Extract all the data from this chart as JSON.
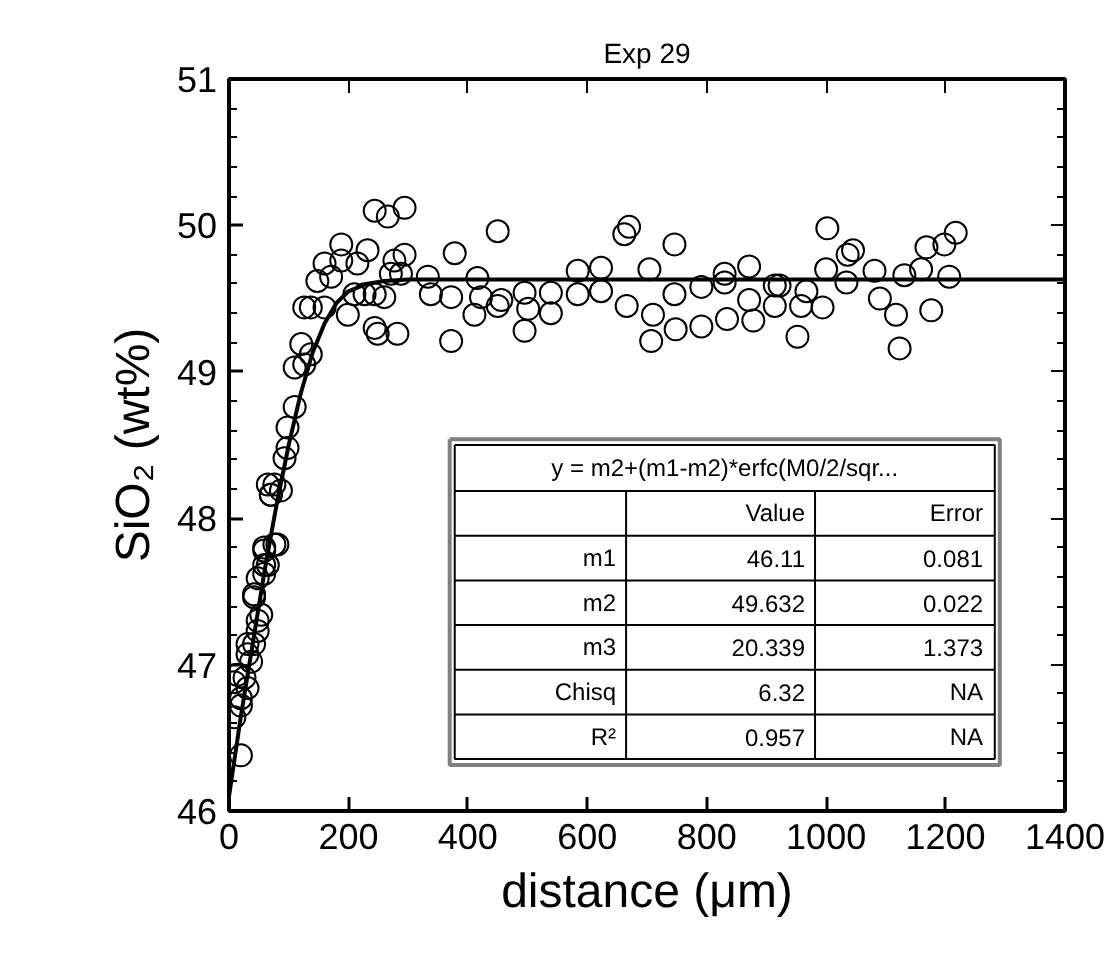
{
  "chart_data": {
    "type": "scatter",
    "title": "Exp 29",
    "xlabel": "distance (μm)",
    "ylabel": "SiO₂ (wt%)",
    "xlim": [
      0,
      1400
    ],
    "xticks": [
      0,
      200,
      400,
      600,
      800,
      1000,
      1200,
      1400
    ],
    "ylim": [
      46,
      51
    ],
    "yticks": [
      46,
      47,
      48,
      49,
      50,
      51
    ],
    "grid": false,
    "marker": "circle",
    "series": [
      {
        "color": "#000000",
        "x": [
          20,
          9,
          20,
          14,
          26,
          37,
          31,
          48,
          42,
          59,
          59,
          65,
          70,
          20,
          31,
          9,
          31,
          42,
          48,
          54,
          42,
          48,
          59,
          65,
          59,
          76,
          81,
          70,
          76,
          87,
          93,
          98,
          98,
          110,
          110,
          121,
          126,
          137,
          126,
          137,
          148,
          160,
          160,
          171,
          188,
          188,
          199,
          210,
          215,
          227,
          232,
          244,
          249,
          244,
          244,
          266,
          260,
          271,
          277,
          282,
          294,
          294,
          288,
          333,
          338,
          372,
          378,
          372,
          411,
          416,
          422,
          450,
          456,
          450,
          495,
          501,
          495,
          539,
          539,
          584,
          584,
          623,
          623,
          662,
          670,
          666,
          704,
          710,
          707,
          746,
          746,
          748,
          791,
          791,
          830,
          830,
          834,
          871,
          871,
          878,
          914,
          914,
          922,
          952,
          958,
          967,
          994,
          1000,
          1002,
          1036,
          1045,
          1034,
          1081,
          1090,
          1117,
          1123,
          1131,
          1159,
          1168,
          1176,
          1198,
          1206,
          1217
        ],
        "values": [
          46.38,
          46.64,
          46.77,
          46.93,
          46.91,
          47.02,
          47.14,
          47.3,
          47.48,
          47.68,
          47.8,
          48.23,
          48.16,
          46.72,
          46.84,
          46.88,
          47.07,
          47.14,
          47.23,
          47.34,
          47.46,
          47.59,
          47.62,
          47.68,
          47.78,
          47.82,
          47.82,
          48.16,
          48.23,
          48.19,
          48.41,
          48.48,
          48.62,
          48.76,
          49.03,
          49.19,
          49.05,
          49.12,
          49.44,
          49.44,
          49.62,
          49.44,
          49.74,
          49.65,
          49.87,
          49.76,
          49.39,
          49.53,
          49.74,
          49.53,
          49.83,
          49.3,
          49.26,
          49.53,
          50.1,
          50.06,
          49.51,
          49.67,
          49.76,
          49.26,
          50.12,
          49.8,
          49.67,
          49.65,
          49.53,
          49.51,
          49.81,
          49.21,
          49.39,
          49.64,
          49.51,
          49.96,
          49.49,
          49.45,
          49.54,
          49.43,
          49.28,
          49.54,
          49.4,
          49.69,
          49.53,
          49.71,
          49.55,
          49.94,
          49.99,
          49.45,
          49.7,
          49.39,
          49.21,
          49.87,
          49.53,
          49.29,
          49.58,
          49.31,
          49.67,
          49.61,
          49.36,
          49.72,
          49.49,
          49.35,
          49.59,
          49.45,
          49.59,
          49.24,
          49.45,
          49.55,
          49.44,
          49.7,
          49.98,
          49.8,
          49.83,
          49.61,
          49.69,
          49.5,
          49.39,
          49.16,
          49.66,
          49.7,
          49.85,
          49.42,
          49.87,
          49.65,
          49.95
        ]
      },
      {
        "type": "line",
        "color": "#000000",
        "marker": "none",
        "line_style": "solid",
        "x": [
          0,
          20,
          40,
          60,
          80,
          100,
          120,
          140,
          160,
          180,
          200,
          230,
          260,
          300,
          1400
        ],
        "values": [
          46.1,
          46.65,
          47.15,
          47.65,
          48.1,
          48.5,
          48.85,
          49.13,
          49.33,
          49.47,
          49.55,
          49.6,
          49.62,
          49.63,
          49.63
        ]
      }
    ],
    "annotations": [
      "y = m2+(m1-m2)*erfc(M0/2/sqr...",
      "Value",
      "Error",
      "m1",
      "46.11",
      "0.081",
      "m2",
      "49.632",
      "0.022",
      "m3",
      "20.339",
      "1.373",
      "Chisq",
      "6.32",
      "NA",
      "R²",
      "0.957",
      "NA"
    ]
  }
}
